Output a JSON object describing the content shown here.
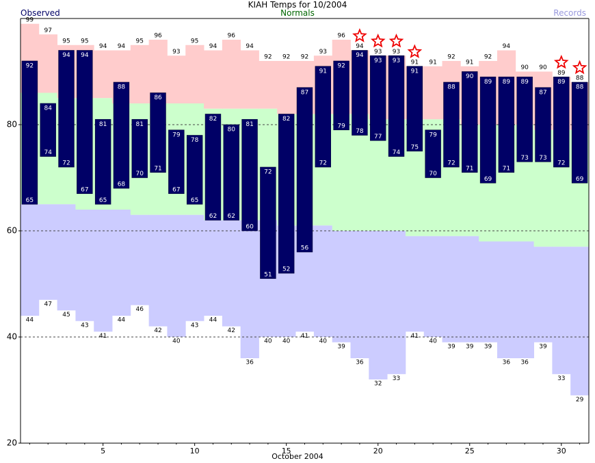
{
  "title": "KIAH Temps for 10/2004",
  "legend": {
    "observed": "Observed",
    "normals": "Normals",
    "records": "Records"
  },
  "colors": {
    "observed": "#000066",
    "normals_label": "#006600",
    "records_label": "#9999dd",
    "record_band": "#ffcccc",
    "normal_band": "#ccffcc",
    "record_low_band": "#ccccff",
    "star": "#ee0000"
  },
  "chart_data": {
    "type": "bar",
    "title": "KIAH Temps for 10/2004",
    "xlabel": "October 2004",
    "ylabel": "",
    "ylim": [
      20,
      100
    ],
    "yticks": [
      20,
      40,
      60,
      80
    ],
    "xticks": [
      5,
      10,
      15,
      20,
      25,
      30
    ],
    "grid": "dashed horizontal at 40, 60, 80",
    "days": [
      1,
      2,
      3,
      4,
      5,
      6,
      7,
      8,
      9,
      10,
      11,
      12,
      13,
      14,
      15,
      16,
      17,
      18,
      19,
      20,
      21,
      22,
      23,
      24,
      25,
      26,
      27,
      28,
      29,
      30,
      31
    ],
    "series": [
      {
        "name": "Observed",
        "kind": "high",
        "values": [
          92,
          84,
          94,
          94,
          81,
          88,
          81,
          86,
          79,
          78,
          82,
          80,
          81,
          72,
          82,
          87,
          91,
          92,
          94,
          93,
          93,
          91,
          79,
          88,
          90,
          89,
          89,
          89,
          87,
          89,
          88
        ]
      },
      {
        "name": "Observed",
        "kind": "low",
        "values": [
          65,
          74,
          72,
          67,
          65,
          68,
          70,
          71,
          67,
          65,
          62,
          62,
          60,
          51,
          52,
          56,
          72,
          79,
          78,
          77,
          74,
          75,
          70,
          72,
          71,
          69,
          71,
          73,
          73,
          72,
          69
        ]
      },
      {
        "name": "Records",
        "kind": "record high",
        "values": [
          99,
          97,
          95,
          95,
          94,
          94,
          95,
          96,
          93,
          95,
          94,
          96,
          94,
          92,
          92,
          92,
          93,
          96,
          94,
          93,
          93,
          91,
          91,
          92,
          91,
          92,
          94,
          90,
          90,
          89,
          88
        ]
      },
      {
        "name": "Records",
        "kind": "record low",
        "values": [
          44,
          47,
          45,
          43,
          41,
          44,
          46,
          42,
          40,
          43,
          44,
          42,
          36,
          40,
          40,
          41,
          40,
          39,
          36,
          32,
          33,
          41,
          40,
          39,
          39,
          39,
          36,
          36,
          39,
          33,
          29
        ]
      },
      {
        "name": "Normals",
        "kind": "normal high",
        "values": [
          86,
          86,
          85,
          85,
          85,
          84,
          84,
          84,
          84,
          84,
          83,
          83,
          83,
          83,
          82,
          82,
          82,
          82,
          82,
          81,
          81,
          81,
          81,
          81,
          80,
          80,
          80,
          80,
          79,
          79,
          79
        ]
      },
      {
        "name": "Normals",
        "kind": "normal low",
        "values": [
          65,
          65,
          65,
          64,
          64,
          64,
          63,
          63,
          63,
          63,
          62,
          62,
          62,
          62,
          61,
          61,
          61,
          60,
          60,
          60,
          60,
          59,
          59,
          59,
          59,
          58,
          58,
          58,
          57,
          57,
          57
        ]
      }
    ],
    "record_star_days": [
      19,
      20,
      21,
      22,
      30,
      31
    ]
  }
}
